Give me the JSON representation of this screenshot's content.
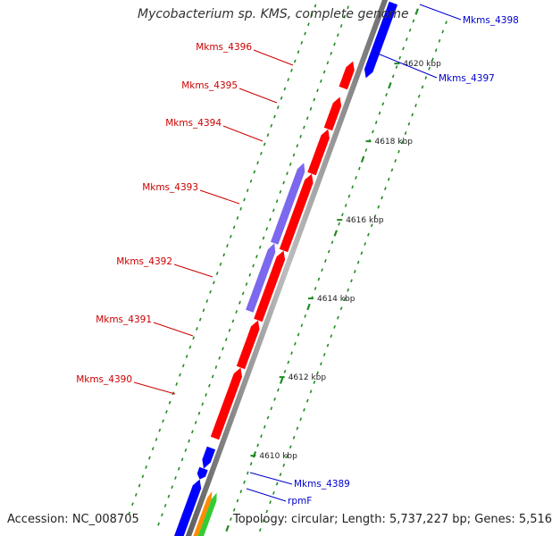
{
  "title": "Mycobacterium sp. KMS, complete genome",
  "footer": {
    "accession": "Accession: NC_008705",
    "topology": "Topology: circular; Length: 5,737,227 bp; Genes: 5,516"
  },
  "colors": {
    "backbone": "#8c8c8c",
    "red_gene": "#ff0000",
    "red_label": "#cc0000",
    "blue_gene": "#0000ff",
    "blue_label": "#0000cc",
    "purple_gene": "#7b68ee",
    "orange_gene": "#ff8c00",
    "green_gene": "#33cc33",
    "tick": "#228b22"
  },
  "ruler": [
    {
      "label": "4620 kbp"
    },
    {
      "label": "4618 kbp"
    },
    {
      "label": "4616 kbp"
    },
    {
      "label": "4614 kbp"
    },
    {
      "label": "4612 kbp"
    },
    {
      "label": "4610 kbp"
    }
  ],
  "genes": [
    {
      "label": "Mkms_4398",
      "strand": "+",
      "color": "blue"
    },
    {
      "label": "Mkms_4397",
      "strand": "+",
      "color": "blue"
    },
    {
      "label": "Mkms_4396",
      "strand": "-",
      "color": "red"
    },
    {
      "label": "Mkms_4395",
      "strand": "-",
      "color": "red"
    },
    {
      "label": "Mkms_4394",
      "strand": "-",
      "color": "red"
    },
    {
      "label": "Mkms_4393",
      "strand": "-",
      "color": "red"
    },
    {
      "label": "Mkms_4392",
      "strand": "-",
      "color": "red"
    },
    {
      "label": "Mkms_4391",
      "strand": "-",
      "color": "red"
    },
    {
      "label": "Mkms_4390",
      "strand": "-",
      "color": "red"
    },
    {
      "label": "Mkms_4389",
      "strand": "-",
      "color": "blue"
    },
    {
      "label": "rpmF",
      "strand": "-",
      "color": "blue"
    }
  ]
}
